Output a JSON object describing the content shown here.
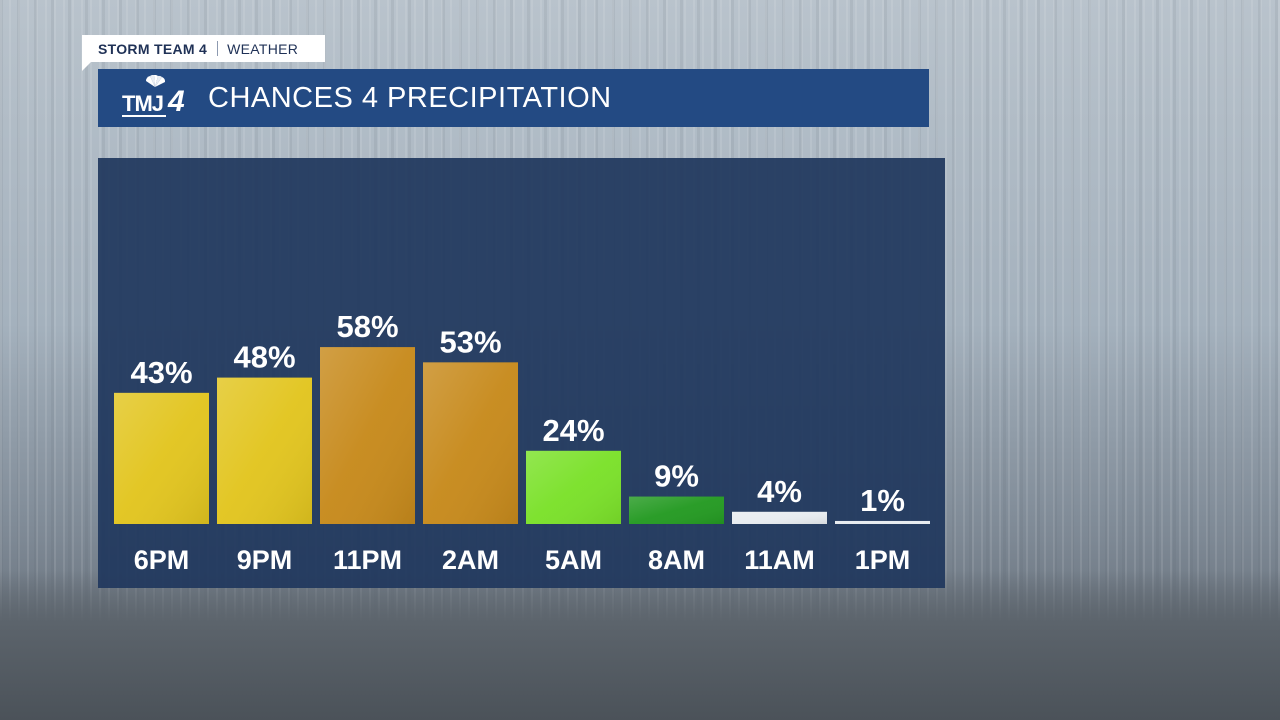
{
  "header": {
    "tag_left": "STORM TEAM 4",
    "tag_right": "WEATHER",
    "logo_letters": "TMJ",
    "logo_number": "4",
    "title": "CHANCES 4 PRECIPITATION"
  },
  "colors": {
    "title_bar": "#234a83",
    "panel": "#20385e",
    "yellow": "#e2c51f",
    "orange": "#c78a1c",
    "lime": "#7be12a",
    "green": "#249a22",
    "white": "#e8ecf0"
  },
  "chart_data": {
    "type": "bar",
    "title": "CHANCES 4 PRECIPITATION",
    "categories": [
      "6PM",
      "9PM",
      "11PM",
      "2AM",
      "5AM",
      "8AM",
      "11AM",
      "1PM"
    ],
    "values": [
      43,
      48,
      58,
      53,
      24,
      9,
      4,
      1
    ],
    "value_labels": [
      "43%",
      "48%",
      "58%",
      "53%",
      "24%",
      "9%",
      "4%",
      "1%"
    ],
    "bar_colors": [
      "#e2c51f",
      "#e2c51f",
      "#c78a1c",
      "#c78a1c",
      "#7be12a",
      "#249a22",
      "#e8ecf0",
      "#e8ecf0"
    ],
    "ylim": [
      0,
      100
    ],
    "xlabel": "",
    "ylabel": "",
    "grid": false,
    "legend": "none"
  }
}
